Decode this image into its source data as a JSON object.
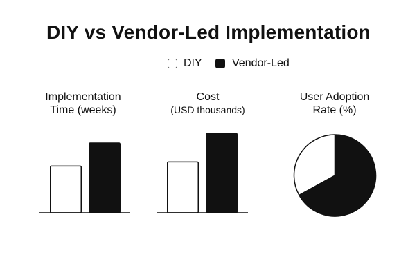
{
  "title": "DIY vs Vendor-Led Implementation",
  "legend": [
    {
      "label": "DIY",
      "color": "#ffffff",
      "border": "#111111"
    },
    {
      "label": "Vendor-Led",
      "color": "#111111",
      "border": "#111111"
    }
  ],
  "panels": {
    "time": {
      "title_line1": "Implementation",
      "title_line2": "Time (weeks)"
    },
    "cost": {
      "title_line1": "Cost",
      "title_line2": "(USD thousands)"
    },
    "adoption": {
      "title_line1": "User Adoption",
      "title_line2": "Rate (%)"
    }
  },
  "chart_data": [
    {
      "type": "bar",
      "title": "Implementation Time (weeks)",
      "categories": [
        "DIY",
        "Vendor-Led"
      ],
      "values": [
        6.7,
        10
      ],
      "note": "No axis ticks shown; values are relative bar heights (Vendor-Led normalized to 10)",
      "xlabel": "",
      "ylabel": "",
      "grid": false
    },
    {
      "type": "bar",
      "title": "Cost (USD thousands)",
      "categories": [
        "DIY",
        "Vendor-Led"
      ],
      "values": [
        6.4,
        10
      ],
      "note": "No axis ticks shown; values are relative bar heights (Vendor-Led normalized to 10)",
      "xlabel": "",
      "ylabel": "",
      "grid": false
    },
    {
      "type": "pie",
      "title": "User Adoption Rate (%)",
      "categories": [
        "DIY",
        "Vendor-Led"
      ],
      "values": [
        33,
        67
      ]
    }
  ],
  "colors": {
    "ink": "#111111",
    "background": "#ffffff"
  }
}
